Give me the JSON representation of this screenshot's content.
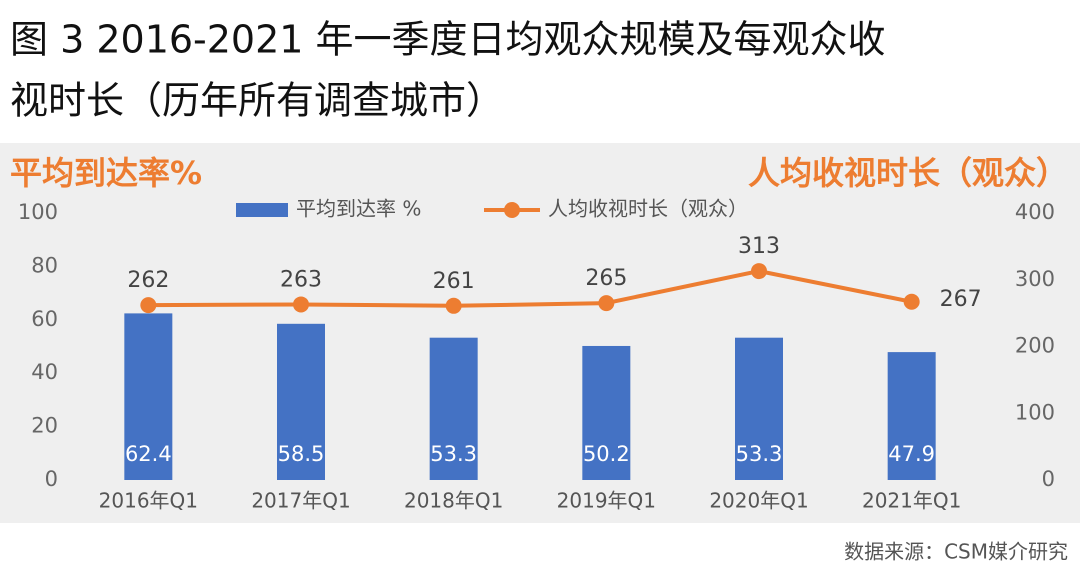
{
  "chart_data": {
    "type": "bar",
    "title": "图 3 2016-2021 年一季度日均观众规模及每观众收",
    "title_line2": "视时长（历年所有调查城市）",
    "ylabel": "平均到达率%",
    "y2label": "人均收视时长（观众）",
    "categories": [
      "2016年Q1",
      "2017年Q1",
      "2018年Q1",
      "2019年Q1",
      "2020年Q1",
      "2021年Q1"
    ],
    "series": [
      {
        "name": "平均到达率 %",
        "type": "bar",
        "color": "#4472c4",
        "values": [
          62.4,
          58.5,
          53.3,
          50.2,
          53.3,
          47.9
        ]
      },
      {
        "name": "人均收视时长（观众）",
        "type": "line",
        "axis": "y2",
        "color": "#ed7d31",
        "values": [
          262,
          263,
          261,
          265,
          313,
          267
        ]
      }
    ],
    "ylim": [
      0,
      100
    ],
    "yticks": [
      0,
      20,
      40,
      60,
      80,
      100
    ],
    "y2lim": [
      0,
      400
    ],
    "y2ticks": [
      0,
      100,
      200,
      300,
      400
    ],
    "source": "数据来源：CSM媒介研究"
  }
}
